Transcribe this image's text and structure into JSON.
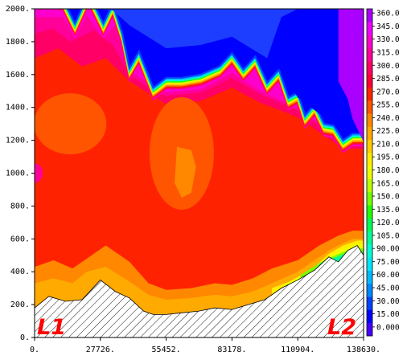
{
  "chart_data": {
    "type": "heatmap",
    "title": "",
    "xlabel": "",
    "ylabel": "",
    "xlim": [
      0,
      138630
    ],
    "ylim": [
      0,
      2000
    ],
    "x_tick_labels": [
      "0.",
      "27726.",
      "55452.",
      "83178.",
      "110904.",
      "138630."
    ],
    "x_ticks": [
      0,
      27726,
      55452,
      83178,
      110904,
      138630
    ],
    "y_tick_labels": [
      "0.",
      "200.",
      "400.",
      "600.",
      "800.",
      "1000.",
      "1200.",
      "1400.",
      "1600.",
      "1800.",
      "2000."
    ],
    "y_ticks": [
      0,
      200,
      400,
      600,
      800,
      1000,
      1200,
      1400,
      1600,
      1800,
      2000
    ],
    "colorbar": {
      "labels": [
        "0.000",
        "15.00",
        "30.00",
        "45.00",
        "60.00",
        "75.00",
        "90.00",
        "105.0",
        "120.0",
        "135.0",
        "150.0",
        "165.0",
        "180.0",
        "195.0",
        "210.0",
        "225.0",
        "240.0",
        "255.0",
        "270.0",
        "285.0",
        "300.0",
        "315.0",
        "330.0",
        "345.0",
        "360.0"
      ],
      "values": [
        0,
        15,
        30,
        45,
        60,
        75,
        90,
        105,
        120,
        135,
        150,
        165,
        180,
        195,
        210,
        225,
        240,
        255,
        270,
        285,
        300,
        315,
        330,
        345,
        360
      ],
      "colors": [
        "#4400ff",
        "#0000ff",
        "#0044ff",
        "#0088ff",
        "#00bbff",
        "#00e5ff",
        "#00ffd5",
        "#00ff99",
        "#00ff55",
        "#22ff00",
        "#77ff00",
        "#bbff00",
        "#eeff00",
        "#ffee00",
        "#ffcc00",
        "#ffaa00",
        "#ff8800",
        "#ff5500",
        "#ff2200",
        "#ff0033",
        "#ff0066",
        "#ff0099",
        "#ff00cc",
        "#ee00ff",
        "#aa00ff"
      ]
    },
    "terrain_profile": {
      "x": [
        0,
        6000,
        13000,
        20000,
        27726,
        34000,
        40000,
        46000,
        50000,
        55452,
        62000,
        69000,
        76000,
        83178,
        90000,
        97000,
        104000,
        110904,
        118000,
        124000,
        128000,
        132000,
        136000,
        138630
      ],
      "y": [
        180,
        250,
        220,
        230,
        350,
        280,
        240,
        160,
        140,
        140,
        150,
        160,
        180,
        170,
        200,
        230,
        300,
        350,
        410,
        490,
        460,
        530,
        560,
        500
      ]
    },
    "boundary_top": {
      "x": [
        5000,
        12000,
        17000,
        22000,
        24000,
        29000,
        33000,
        37000,
        40000,
        44000,
        47000,
        50000,
        55452,
        62000,
        70000,
        78000,
        83178,
        88000,
        93000,
        98000,
        103000,
        107000,
        110904,
        114000,
        118000,
        122000,
        126000,
        130000,
        134000,
        138630
      ],
      "y": [
        2000,
        1990,
        1840,
        2000,
        1990,
        1840,
        1960,
        1780,
        1570,
        1670,
        1560,
        1450,
        1510,
        1510,
        1530,
        1580,
        1660,
        1560,
        1640,
        1480,
        1560,
        1390,
        1420,
        1280,
        1350,
        1230,
        1220,
        1130,
        1170,
        1170
      ]
    },
    "annotations": [
      "L1",
      "L2"
    ]
  }
}
